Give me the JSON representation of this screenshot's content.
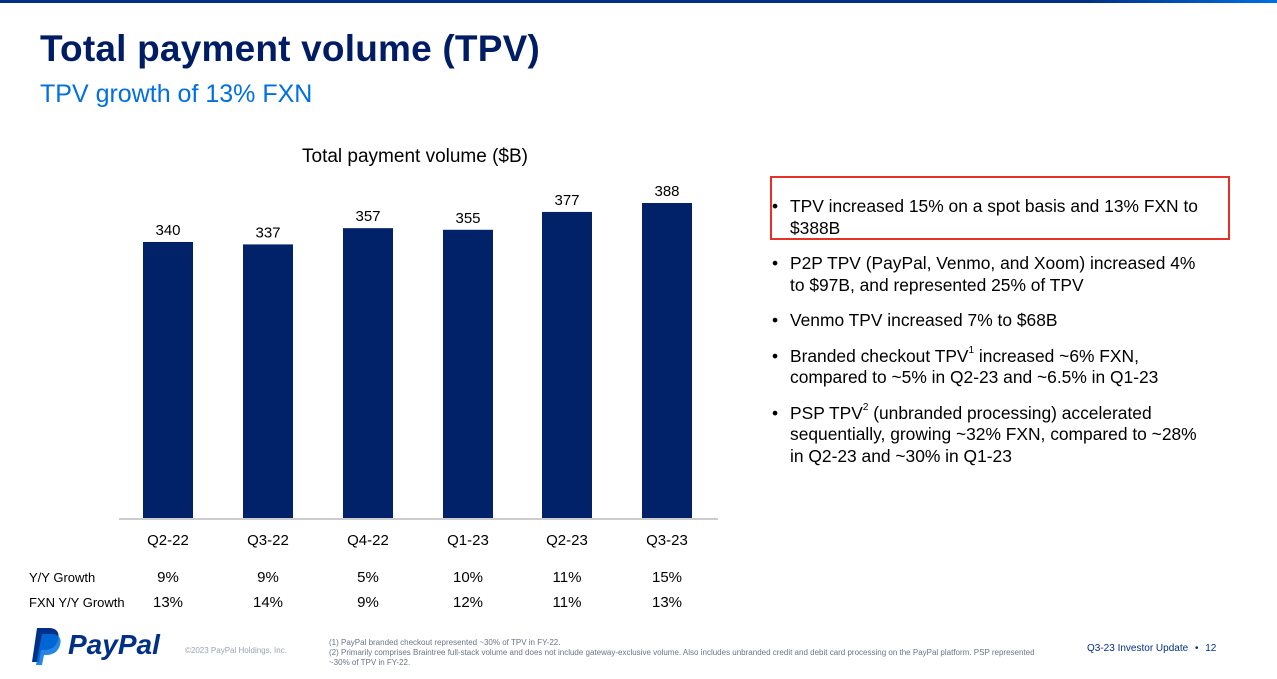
{
  "title": "Total payment volume (TPV)",
  "subtitle": "TPV growth of 13% FXN",
  "chart_data": {
    "type": "bar",
    "title": "Total payment volume ($B)",
    "categories": [
      "Q2-22",
      "Q3-22",
      "Q4-22",
      "Q1-23",
      "Q2-23",
      "Q3-23"
    ],
    "values": [
      340,
      337,
      357,
      355,
      377,
      388
    ],
    "xlabel": "",
    "ylabel": "",
    "bar_color": "#012169",
    "grid": false
  },
  "growth_table": {
    "rows": [
      {
        "label": "Y/Y Growth",
        "values": [
          "9%",
          "9%",
          "5%",
          "10%",
          "11%",
          "15%"
        ]
      },
      {
        "label": "FXN Y/Y Growth",
        "values": [
          "13%",
          "14%",
          "9%",
          "12%",
          "11%",
          "13%"
        ]
      }
    ]
  },
  "bullets": [
    {
      "text": "TPV increased 15% on a spot basis and 13% FXN to $388B"
    },
    {
      "text": "P2P TPV (PayPal, Venmo, and Xoom) increased 4% to $97B, and represented 25% of TPV"
    },
    {
      "text": "Venmo TPV increased 7% to $68B"
    },
    {
      "pre": "Branded checkout TPV",
      "sup": "1",
      "post": " increased ~6% FXN, compared to ~5% in Q2-23 and ~6.5% in Q1-23"
    },
    {
      "pre": "PSP TPV",
      "sup": "2",
      "post": " (unbranded processing) accelerated sequentially, growing ~32% FXN, compared to ~28% in Q2-23 and ~30% in Q1-23"
    }
  ],
  "bullet_char": "•",
  "highlight_color": "#e8302a",
  "footer": {
    "brand": "PayPal",
    "copyright": "©2023 PayPal Holdings, Inc.",
    "footnote_1": "(1) PayPal branded checkout represented ~30% of TPV in FY-22.",
    "footnote_2": "(2) Primarily comprises Braintree full-stack volume and does not include gateway-exclusive volume. Also includes unbranded credit and debit card processing on the PayPal platform. PSP represented ~30% of TPV in FY-22.",
    "right": "Q3-23 Investor Update",
    "separator": "•",
    "page": "12"
  },
  "colors": {
    "title": "#001c64",
    "subtitle": "#0070e0",
    "brand": "#003087"
  }
}
